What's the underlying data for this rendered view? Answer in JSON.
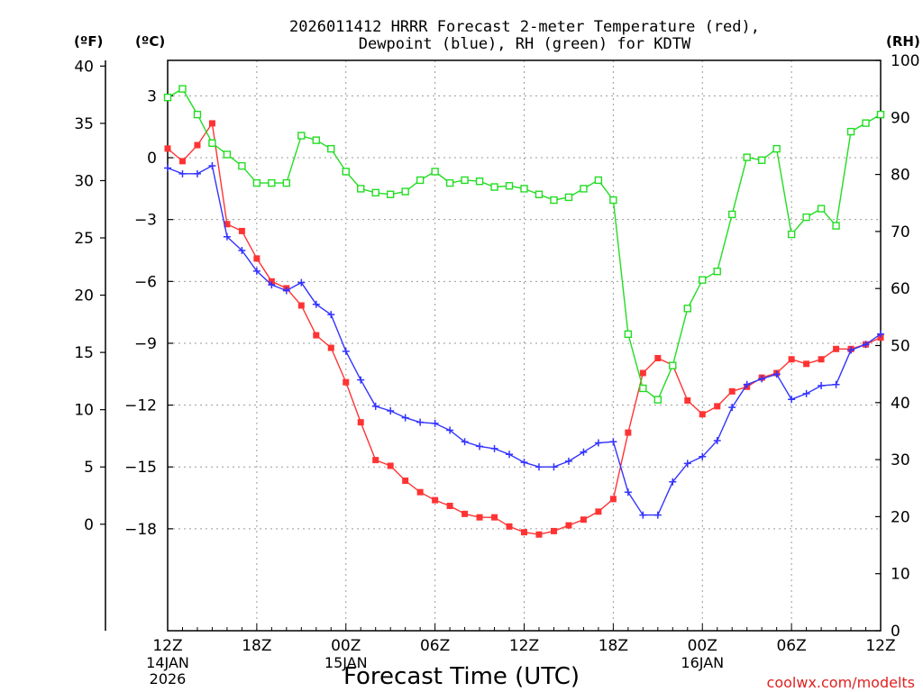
{
  "chart_data": {
    "type": "line",
    "title_line1": "2026011412 HRRR Forecast 2-meter Temperature (red),",
    "title_line2": "Dewpoint (blue), RH (green) for KDTW",
    "xlabel": "Forecast Time (UTC)",
    "credit": "coolwx.com/modelts",
    "unit_f": "(ºF)",
    "unit_c": "(ºC)",
    "unit_rh": "(RH)",
    "x_ticks": [
      {
        "h": 0,
        "label": "12Z",
        "date": "14JAN",
        "year": "2026"
      },
      {
        "h": 6,
        "label": "18Z"
      },
      {
        "h": 12,
        "label": "00Z",
        "date": "15JAN"
      },
      {
        "h": 18,
        "label": "06Z"
      },
      {
        "h": 24,
        "label": "12Z"
      },
      {
        "h": 30,
        "label": "18Z"
      },
      {
        "h": 36,
        "label": "00Z",
        "date": "16JAN"
      },
      {
        "h": 42,
        "label": "06Z"
      },
      {
        "h": 48,
        "label": "12Z"
      }
    ],
    "xlim": [
      0,
      48
    ],
    "f_ticks": [
      "40",
      "35",
      "30",
      "25",
      "20",
      "15",
      "10",
      "5",
      "0"
    ],
    "c_ticks": [
      "3",
      "0",
      "−3",
      "−6",
      "−9",
      "−12",
      "−15",
      "−18"
    ],
    "rh_ticks": [
      "100",
      "90",
      "80",
      "70",
      "60",
      "50",
      "40",
      "30",
      "20",
      "10",
      "0"
    ],
    "f_range": [
      -9.3,
      40.5
    ],
    "rh_range": [
      0,
      100
    ],
    "series": [
      {
        "name": "Temperature",
        "unit": "F",
        "color": "#ff3333",
        "marker": "filled-square",
        "values": [
          32.8,
          31.7,
          33.1,
          35.0,
          26.2,
          25.6,
          23.2,
          21.2,
          20.6,
          19.1,
          16.5,
          15.4,
          12.4,
          8.9,
          5.6,
          5.1,
          3.8,
          2.8,
          2.1,
          1.6,
          0.9,
          0.6,
          0.6,
          -0.2,
          -0.7,
          -0.9,
          -0.6,
          -0.1,
          0.4,
          1.1,
          2.2,
          8.0,
          13.2,
          14.5,
          13.9,
          10.8,
          9.6,
          10.3,
          11.6,
          12.0,
          12.8,
          13.2,
          14.4,
          14.0,
          14.4,
          15.3,
          15.3,
          15.7,
          16.3
        ]
      },
      {
        "name": "Dewpoint",
        "unit": "F",
        "color": "#3333ff",
        "marker": "plus",
        "values": [
          31.1,
          30.6,
          30.6,
          31.3,
          25.1,
          23.9,
          22.1,
          20.9,
          20.4,
          21.1,
          19.2,
          18.3,
          15.1,
          12.6,
          10.3,
          9.9,
          9.3,
          8.9,
          8.8,
          8.2,
          7.2,
          6.8,
          6.6,
          6.1,
          5.4,
          5.0,
          5.0,
          5.5,
          6.3,
          7.1,
          7.2,
          2.8,
          0.8,
          0.8,
          3.7,
          5.3,
          5.9,
          7.3,
          10.2,
          12.2,
          12.7,
          13.1,
          10.9,
          11.4,
          12.1,
          12.2,
          15.2,
          15.7,
          16.6
        ]
      },
      {
        "name": "RH",
        "unit": "%",
        "color": "#22dd22",
        "marker": "open-square",
        "values": [
          93.5,
          95.0,
          90.5,
          85.5,
          83.5,
          81.5,
          78.5,
          78.5,
          78.5,
          86.8,
          86.0,
          84.5,
          80.5,
          77.5,
          76.8,
          76.5,
          77.0,
          79.0,
          80.5,
          78.5,
          79.0,
          78.8,
          77.8,
          78.0,
          77.5,
          76.5,
          75.5,
          76.0,
          77.5,
          79.0,
          75.5,
          52.0,
          42.5,
          40.5,
          46.5,
          56.5,
          61.5,
          63.0,
          73.0,
          83.0,
          82.5,
          84.5,
          69.5,
          72.5,
          74.0,
          71.0,
          87.5,
          89.0,
          90.5
        ]
      }
    ]
  }
}
